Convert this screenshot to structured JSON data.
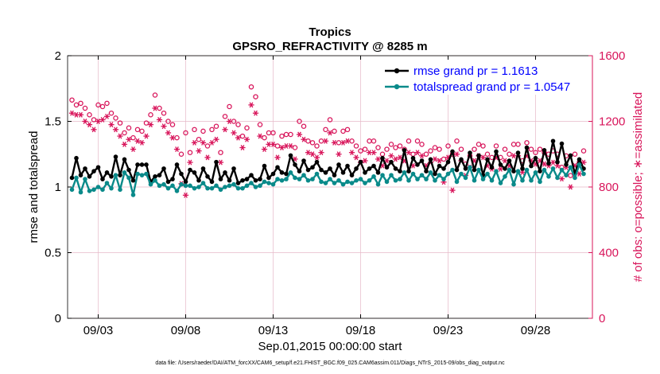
{
  "colors": {
    "rmse": "#000000",
    "spread": "#0a8a8a",
    "obs": "#d8145a",
    "grid": "#e6b8c8",
    "legend_text": "#0000ff"
  },
  "chart_data": {
    "type": "line",
    "title": "Tropics",
    "subtitle": "GPSRO_REFRACTIVITY @ 8285 m",
    "xlabel": "Sep.01,2015 00:00:00 start",
    "ylabel": "rmse and totalspread",
    "y2label": "# of obs: o=possible; ∗=assimilated",
    "footer": "data file: /Users/raeder/DAI/ATM_forcXX/CAM6_setup/f.e21.FHIST_BGC.f09_025.CAM6assim.011/Diags_NTrS_2015-09/obs_diag_output.nc",
    "xlim": [
      1.25,
      31.25
    ],
    "ylim": [
      0,
      2
    ],
    "y2lim": [
      0,
      1600
    ],
    "x_ticks": [
      3,
      8,
      13,
      18,
      23,
      28
    ],
    "x_tick_labels": [
      "09/03",
      "09/08",
      "09/13",
      "09/18",
      "09/23",
      "09/28"
    ],
    "y_ticks": [
      0,
      0.5,
      1,
      1.5,
      2
    ],
    "y_tick_labels": [
      "0",
      "0.5",
      "1",
      "1.5",
      "2"
    ],
    "y2_ticks": [
      0,
      400,
      800,
      1200,
      1600
    ],
    "y2_tick_labels": [
      "0",
      "400",
      "800",
      "1200",
      "1600"
    ],
    "legend": [
      {
        "name": "rmse grand pr = 1.1613",
        "color_key": "rmse"
      },
      {
        "name": "totalspread grand pr = 1.0547",
        "color_key": "spread"
      }
    ],
    "x": [
      1.5,
      1.75,
      2,
      2.25,
      2.5,
      2.75,
      3,
      3.25,
      3.5,
      3.75,
      4,
      4.25,
      4.5,
      4.75,
      5,
      5.25,
      5.5,
      5.75,
      6,
      6.25,
      6.5,
      6.75,
      7,
      7.25,
      7.5,
      7.75,
      8,
      8.25,
      8.5,
      8.75,
      9,
      9.25,
      9.5,
      9.75,
      10,
      10.25,
      10.5,
      10.75,
      11,
      11.25,
      11.5,
      11.75,
      12,
      12.25,
      12.5,
      12.75,
      13,
      13.25,
      13.5,
      13.75,
      14,
      14.25,
      14.5,
      14.75,
      15,
      15.25,
      15.5,
      15.75,
      16,
      16.25,
      16.5,
      16.75,
      17,
      17.25,
      17.5,
      17.75,
      18,
      18.25,
      18.5,
      18.75,
      19,
      19.25,
      19.5,
      19.75,
      20,
      20.25,
      20.5,
      20.75,
      21,
      21.25,
      21.5,
      21.75,
      22,
      22.25,
      22.5,
      22.75,
      23,
      23.25,
      23.5,
      23.75,
      24,
      24.25,
      24.5,
      24.75,
      25,
      25.25,
      25.5,
      25.75,
      26,
      26.25,
      26.5,
      26.75,
      27,
      27.25,
      27.5,
      27.75,
      28,
      28.25,
      28.5,
      28.75,
      29,
      29.25,
      29.5,
      29.75,
      30,
      30.25,
      30.5,
      30.75
    ],
    "series": [
      {
        "name": "rmse",
        "values": [
          1.07,
          1.22,
          1.09,
          1.14,
          1.08,
          1.12,
          1.15,
          1.06,
          1.11,
          1.08,
          1.23,
          1.09,
          1.21,
          1.13,
          1.05,
          1.17,
          1.17,
          1.17,
          1.04,
          1.08,
          1.09,
          1.14,
          1.04,
          1.06,
          1.17,
          1.1,
          1.04,
          1.13,
          1.11,
          1.05,
          1.14,
          1.08,
          1.04,
          1.19,
          1.06,
          1.11,
          1.05,
          1.14,
          1.03,
          1.05,
          1.06,
          1.09,
          1.05,
          1.06,
          1.16,
          1.07,
          1.1,
          1.15,
          1.11,
          1.1,
          1.24,
          1.17,
          1.12,
          1.2,
          1.13,
          1.15,
          1.19,
          1.13,
          1.11,
          1.14,
          1.09,
          1.17,
          1.11,
          1.16,
          1.09,
          1.14,
          1.19,
          1.11,
          1.14,
          1.16,
          1.11,
          1.22,
          1.15,
          1.19,
          1.14,
          1.12,
          1.28,
          1.12,
          1.22,
          1.17,
          1.2,
          1.12,
          1.21,
          1.1,
          1.16,
          1.14,
          1.19,
          1.27,
          1.13,
          1.21,
          1.14,
          1.26,
          1.13,
          1.24,
          1.09,
          1.21,
          1.15,
          1.27,
          1.17,
          1.14,
          1.2,
          1.12,
          1.26,
          1.14,
          1.3,
          1.16,
          1.22,
          1.12,
          1.28,
          1.18,
          1.35,
          1.19,
          1.33,
          1.17,
          1.24,
          1.1,
          1.21,
          1.14
        ],
        "color_key": "rmse"
      },
      {
        "name": "totalspread",
        "values": [
          0.98,
          1.07,
          0.96,
          1.06,
          0.97,
          0.98,
          1.0,
          0.98,
          1.03,
          0.99,
          1.09,
          0.98,
          1.11,
          1.07,
          0.94,
          1.1,
          1.09,
          1.1,
          1.02,
          1.05,
          1.01,
          1.02,
          0.99,
          1.01,
          0.97,
          1.02,
          1.01,
          1.01,
          0.99,
          1.0,
          1.03,
          0.99,
          0.99,
          1.01,
          0.98,
          1.0,
          1.01,
          1.02,
          0.99,
          0.99,
          1.01,
          1.03,
          1.0,
          1.01,
          1.04,
          1.03,
          1.02,
          1.06,
          1.05,
          1.06,
          1.11,
          1.07,
          1.06,
          1.09,
          1.05,
          1.06,
          1.1,
          1.04,
          1.03,
          1.06,
          1.03,
          1.05,
          1.02,
          1.04,
          1.03,
          1.05,
          1.06,
          1.03,
          1.05,
          1.08,
          1.02,
          1.09,
          1.04,
          1.09,
          1.05,
          1.06,
          1.11,
          1.05,
          1.1,
          1.06,
          1.09,
          1.06,
          1.11,
          1.05,
          1.09,
          1.06,
          1.1,
          1.13,
          1.04,
          1.1,
          1.07,
          1.15,
          1.05,
          1.13,
          1.06,
          1.1,
          1.05,
          1.12,
          1.03,
          1.08,
          1.13,
          1.02,
          1.12,
          1.05,
          1.13,
          1.05,
          1.11,
          1.04,
          1.13,
          1.08,
          1.14,
          1.07,
          1.13,
          1.09,
          1.15,
          1.07,
          1.17,
          1.1
        ],
        "color_key": "spread"
      }
    ],
    "obs_possible": [
      1330,
      1300,
      1310,
      1280,
      1240,
      1210,
      1300,
      1290,
      1310,
      1250,
      1220,
      1190,
      1130,
      1160,
      1100,
      1150,
      1140,
      1190,
      1240,
      1360,
      1280,
      1250,
      1200,
      1180,
      1100,
      1000,
      1130,
      1010,
      1150,
      1090,
      1140,
      1050,
      1150,
      1170,
      1010,
      1230,
      1290,
      1200,
      1180,
      1110,
      1160,
      1410,
      1350,
      1180,
      1100,
      1130,
      1130,
      1050,
      1110,
      1120,
      1120,
      1040,
      1200,
      1170,
      1080,
      1070,
      1050,
      1080,
      1150,
      1210,
      1140,
      1070,
      1140,
      1150,
      1080,
      1050,
      1020,
      1030,
      1080,
      1080,
      1040,
      1000,
      1030,
      1060,
      1040,
      1050,
      1030,
      1080,
      1000,
      1080,
      1060,
      1000,
      1020,
      1040,
      1030,
      970,
      1050,
      1000,
      1080,
      1030,
      940,
      990,
      1030,
      1060,
      1050,
      1000,
      980,
      1050,
      980,
      1030,
      1000,
      1060,
      1060,
      960,
      1070,
      1030,
      1010,
      1030,
      1010,
      1000,
      1020,
      1000,
      920,
      990,
      870,
      1000,
      950,
      1020
    ],
    "obs_assimilated": [
      1250,
      1240,
      1240,
      1200,
      1180,
      1150,
      1200,
      1210,
      1230,
      1180,
      1150,
      1110,
      1060,
      1090,
      1030,
      1080,
      1070,
      1110,
      1180,
      1280,
      1210,
      1170,
      1130,
      1100,
      1030,
      820,
      750,
      950,
      1070,
      1020,
      1070,
      980,
      1070,
      1090,
      950,
      1150,
      1200,
      1130,
      1100,
      1040,
      1090,
      1300,
      1250,
      1110,
      1030,
      1060,
      1060,
      980,
      1040,
      1050,
      1050,
      970,
      1120,
      1090,
      1010,
      1000,
      980,
      1010,
      1080,
      1130,
      1070,
      1000,
      1070,
      1080,
      1010,
      980,
      950,
      960,
      1010,
      1010,
      970,
      930,
      960,
      990,
      970,
      980,
      960,
      1010,
      930,
      1010,
      990,
      930,
      950,
      970,
      960,
      830,
      980,
      780,
      1000,
      960,
      870,
      920,
      960,
      990,
      980,
      930,
      910,
      980,
      910,
      960,
      930,
      990,
      990,
      890,
      990,
      960,
      940,
      960,
      940,
      930,
      950,
      930,
      850,
      920,
      800,
      930,
      880,
      950
    ]
  }
}
